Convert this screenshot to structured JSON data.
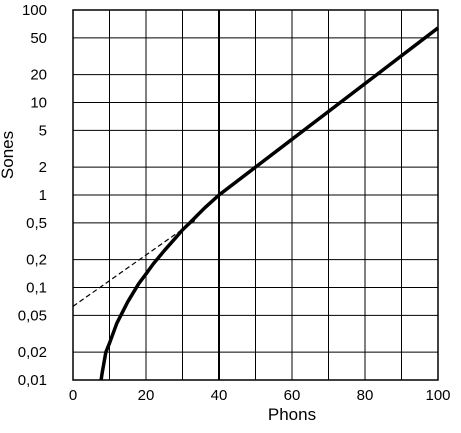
{
  "chart_data": {
    "type": "line",
    "title": "",
    "xlabel": "Phons",
    "ylabel": "Sones",
    "x_scale": "linear",
    "y_scale": "log",
    "xlim": [
      0,
      100
    ],
    "ylim": [
      0.01,
      100
    ],
    "x_ticks": [
      0,
      20,
      40,
      60,
      80,
      100
    ],
    "x_tick_labels": [
      "0",
      "20",
      "40",
      "60",
      "80",
      "100"
    ],
    "y_ticks": [
      0.01,
      0.02,
      0.05,
      0.1,
      0.2,
      0.5,
      1,
      2,
      5,
      10,
      20,
      50,
      100
    ],
    "y_tick_labels": [
      "0,01",
      "0,02",
      "0,05",
      "0,1",
      "0,2",
      "0,5",
      "1",
      "2",
      "5",
      "10",
      "20",
      "50",
      "100"
    ],
    "grid": true,
    "reference_line_x": 40,
    "series": [
      {
        "style": "solid-thick",
        "x": [
          7.7,
          8.0,
          9.0,
          10,
          12,
          15,
          18,
          20,
          22,
          25,
          28,
          30,
          32,
          34,
          36,
          38,
          40,
          50,
          60,
          70,
          80,
          90,
          100
        ],
        "y": [
          0.01,
          0.012,
          0.02,
          0.025,
          0.041,
          0.07,
          0.11,
          0.14,
          0.18,
          0.25,
          0.34,
          0.42,
          0.5,
          0.6,
          0.72,
          0.85,
          1.0,
          2.0,
          4.0,
          8.0,
          16.0,
          32.0,
          64.0
        ]
      },
      {
        "style": "dashed-thin",
        "x": [
          0,
          34
        ],
        "y": [
          0.0625,
          0.55
        ]
      }
    ]
  }
}
